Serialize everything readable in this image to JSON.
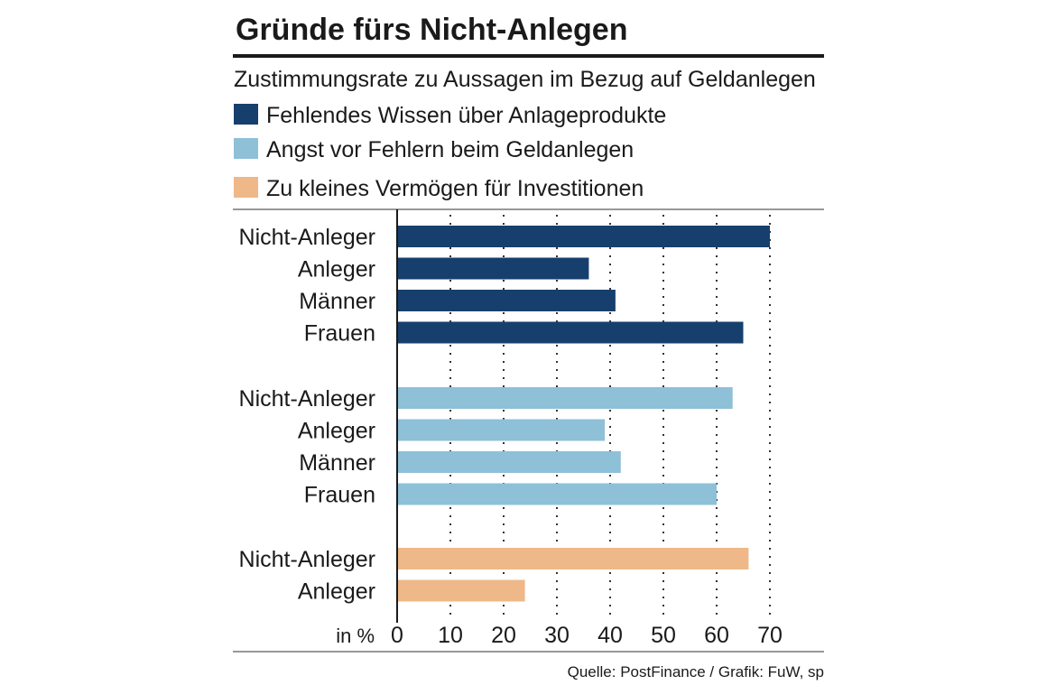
{
  "chart_data": {
    "type": "bar",
    "orientation": "horizontal",
    "title": "Gründe fürs Nicht-Anlegen",
    "subtitle": "Zustimmungsrate zu Aussagen im Bezug auf Geldanlegen",
    "unit_label": "in %",
    "xlim": [
      0,
      70
    ],
    "xticks": [
      0,
      10,
      20,
      30,
      40,
      50,
      60,
      70
    ],
    "grid": "dotted vertical",
    "series": [
      {
        "name": "Fehlendes Wissen über Anlageprodukte",
        "color": "#173f6e",
        "categories": [
          "Nicht-Anleger",
          "Anleger",
          "Männer",
          "Frauen"
        ],
        "values": [
          70,
          36,
          41,
          65
        ]
      },
      {
        "name": "Angst vor Fehlern beim Geldanlegen",
        "color": "#8ec0d8",
        "categories": [
          "Nicht-Anleger",
          "Anleger",
          "Männer",
          "Frauen"
        ],
        "values": [
          63,
          39,
          42,
          60
        ]
      },
      {
        "name": "Zu kleines Vermögen für Investitionen",
        "color": "#eeb888",
        "categories": [
          "Nicht-Anleger",
          "Anleger"
        ],
        "values": [
          66,
          24
        ]
      }
    ],
    "source": "Quelle: PostFinance / Grafik: FuW, sp"
  }
}
